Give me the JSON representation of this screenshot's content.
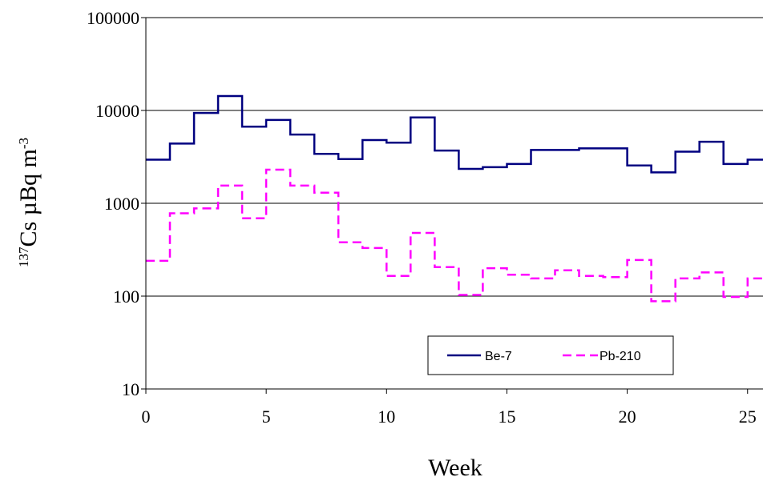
{
  "chart_data": {
    "type": "line",
    "step": true,
    "xlabel": "Week",
    "ylabel": {
      "superscript": "137",
      "main": "Cs µBq m",
      "exponent": "-3"
    },
    "xlim": [
      0,
      26
    ],
    "xticks": [
      0,
      5,
      10,
      15,
      20,
      25
    ],
    "yscale": "log",
    "ylim": [
      10,
      100000
    ],
    "yticks": [
      10,
      100,
      1000,
      10000,
      100000
    ],
    "grid": "horizontal major gridlines",
    "legend_position": "bottom-right",
    "series": [
      {
        "name": "Be-7",
        "color": "#000080",
        "line_style": "solid",
        "values": [
          2950,
          4400,
          9400,
          14300,
          6700,
          7900,
          5500,
          3400,
          3000,
          4800,
          4500,
          8400,
          3700,
          2350,
          2450,
          2650,
          3750,
          3750,
          3900,
          3900,
          2550,
          2150,
          3600,
          4600,
          2650,
          2950
        ]
      },
      {
        "name": "Pb-210",
        "color": "#ff00ff",
        "line_style": "dashed",
        "values": [
          240,
          780,
          880,
          1550,
          690,
          2300,
          1550,
          1300,
          380,
          330,
          165,
          480,
          205,
          103,
          200,
          170,
          155,
          190,
          165,
          160,
          245,
          88,
          155,
          180,
          98,
          155
        ]
      }
    ]
  }
}
